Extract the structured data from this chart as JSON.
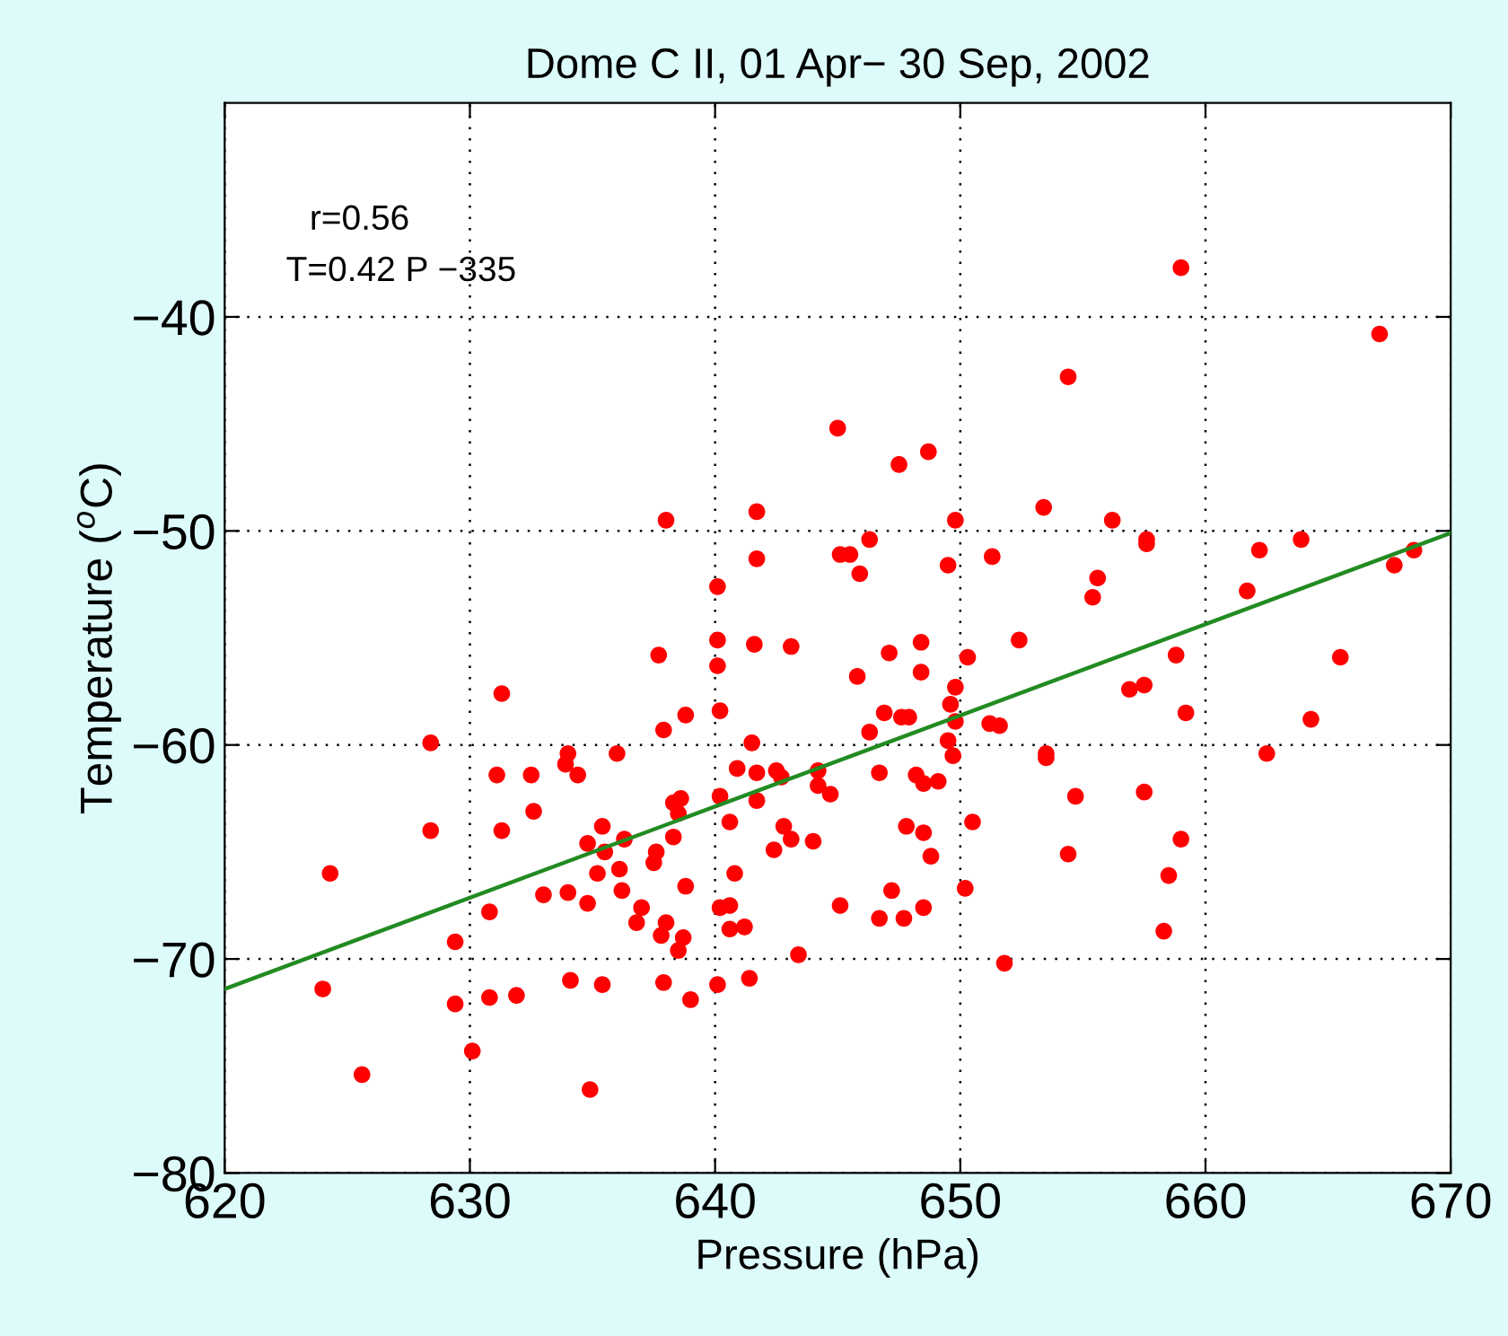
{
  "chart_data": {
    "type": "scatter",
    "title": "Dome C II, 01 Apr− 30 Sep, 2002",
    "xlabel": "Pressure (hPa)",
    "ylabel": "Temperature ($^{o}$C)",
    "annotations": [
      "r=0.56",
      "T=0.42 P −335"
    ],
    "xlim": [
      620,
      670
    ],
    "xticks": [
      620,
      630,
      640,
      650,
      660,
      670
    ],
    "ylim": [
      -80,
      -30
    ],
    "yticks": [
      -80,
      -70,
      -60,
      -50,
      -40
    ],
    "grid": true,
    "marker": "circle",
    "series": [
      {
        "color": "#ff0000",
        "x": [
          624.3,
          624.0,
          625.6,
          628.4,
          628.4,
          629.4,
          629.4,
          630.1,
          630.8,
          630.8,
          631.3,
          631.1,
          631.3,
          631.9,
          632.5,
          632.6,
          633.0,
          634.0,
          633.9,
          634.4,
          634.0,
          634.1,
          634.8,
          634.9,
          634.8,
          635.4,
          635.5,
          635.2,
          635.4,
          636.0,
          636.3,
          636.1,
          636.2,
          636.8,
          637.0,
          637.7,
          637.9,
          638.8,
          637.6,
          637.5,
          638.3,
          638.6,
          638.5,
          638.3,
          638.8,
          638.0,
          637.8,
          638.7,
          638.5,
          637.9,
          639.0,
          640.1,
          640.2,
          640.2,
          640.6,
          640.8,
          640.2,
          640.6,
          640.6,
          641.2,
          640.1,
          641.4,
          641.5,
          640.9,
          641.7,
          641.7,
          642.5,
          642.7,
          642.8,
          643.1,
          642.4,
          643.4,
          644.0,
          644.2,
          644.2,
          644.7,
          645.1,
          638.0,
          641.7,
          641.7,
          640.1,
          645.0,
          645.1,
          640.1,
          641.6,
          643.1,
          659.0,
          667.1,
          654.4,
          647.5,
          648.7,
          653.4,
          649.8,
          656.2,
          646.3,
          645.5,
          645.9,
          649.5,
          651.3,
          657.6,
          657.6,
          655.6,
          655.4,
          662.2,
          663.9,
          661.7,
          667.7,
          668.5,
          647.1,
          648.4,
          650.3,
          652.4,
          658.8,
          665.5,
          645.8,
          648.4,
          649.8,
          649.6,
          646.9,
          647.6,
          647.9,
          649.8,
          646.3,
          649.5,
          649.7,
          646.7,
          648.2,
          648.5,
          649.1,
          651.2,
          651.6,
          653.5,
          653.5,
          654.7,
          656.9,
          657.5,
          659.2,
          657.5,
          662.5,
          664.3,
          647.8,
          648.5,
          648.8,
          650.5,
          654.4,
          659.0,
          658.5,
          647.2,
          646.7,
          647.7,
          648.5,
          650.2,
          658.3,
          651.8
        ],
        "values": [
          -66.0,
          -71.4,
          -75.4,
          -59.9,
          -64.0,
          -69.2,
          -72.1,
          -74.3,
          -67.8,
          -71.8,
          -57.6,
          -61.4,
          -64.0,
          -71.7,
          -61.4,
          -63.1,
          -67.0,
          -60.4,
          -60.9,
          -61.4,
          -66.9,
          -71.0,
          -67.4,
          -76.1,
          -64.6,
          -63.8,
          -65.0,
          -66.0,
          -71.2,
          -60.4,
          -64.4,
          -65.8,
          -66.8,
          -68.3,
          -67.6,
          -55.8,
          -59.3,
          -58.6,
          -65.0,
          -65.5,
          -62.7,
          -62.5,
          -63.2,
          -64.3,
          -66.6,
          -68.3,
          -68.9,
          -69.0,
          -69.6,
          -71.1,
          -71.9,
          -56.3,
          -58.4,
          -62.4,
          -63.6,
          -66.0,
          -67.6,
          -67.5,
          -68.6,
          -68.5,
          -71.2,
          -70.9,
          -59.9,
          -61.1,
          -61.3,
          -62.6,
          -61.2,
          -61.5,
          -63.8,
          -64.4,
          -64.9,
          -69.8,
          -64.5,
          -61.2,
          -61.9,
          -62.3,
          -67.5,
          -49.5,
          -49.1,
          -51.3,
          -52.6,
          -45.2,
          -51.1,
          -55.1,
          -55.3,
          -55.4,
          -37.7,
          -40.8,
          -42.8,
          -46.9,
          -46.3,
          -48.9,
          -49.5,
          -49.5,
          -50.4,
          -51.1,
          -52.0,
          -51.6,
          -51.2,
          -50.4,
          -50.6,
          -52.2,
          -53.1,
          -50.9,
          -50.4,
          -52.8,
          -51.6,
          -50.9,
          -55.7,
          -55.2,
          -55.9,
          -55.1,
          -55.8,
          -55.9,
          -56.8,
          -56.6,
          -57.3,
          -58.1,
          -58.5,
          -58.7,
          -58.7,
          -58.9,
          -59.4,
          -59.8,
          -60.5,
          -61.3,
          -61.4,
          -61.8,
          -61.7,
          -59.0,
          -59.1,
          -60.4,
          -60.6,
          -62.4,
          -57.4,
          -57.2,
          -58.5,
          -62.2,
          -60.4,
          -58.8,
          -63.8,
          -64.1,
          -65.2,
          -63.6,
          -65.1,
          -64.4,
          -66.1,
          -66.8,
          -68.1,
          -68.1,
          -67.6,
          -66.7,
          -68.7,
          -70.2
        ]
      },
      {
        "type": "line",
        "color": "#228b22",
        "x": [
          620,
          670
        ],
        "values": [
          -71.4,
          -50.1
        ],
        "marker": "none"
      }
    ]
  }
}
